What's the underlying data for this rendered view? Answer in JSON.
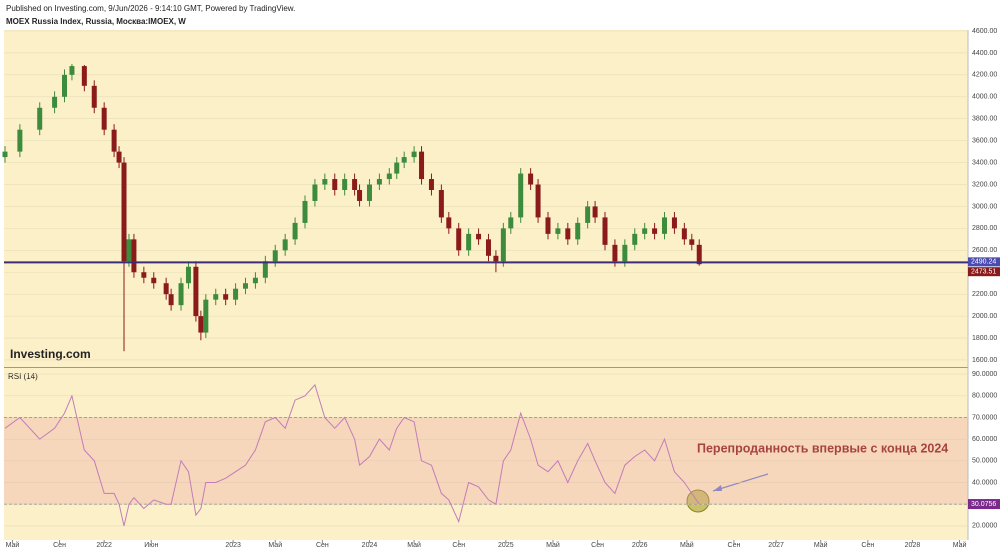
{
  "header": {
    "published": "Published on Investing.com, 9/Jun/2026 - 9:14:10 GMT, Powered by TradingView.",
    "symbol": "MOEX Russia Index, Russia, Москва:IMOEX, W"
  },
  "chart_data": [
    {
      "type": "candlestick",
      "watermark": "Investing.com",
      "x": [
        0,
        6,
        14,
        20,
        24,
        27,
        32,
        36,
        40,
        44,
        46,
        48,
        50,
        52,
        56,
        60,
        65,
        67,
        71,
        74,
        77,
        79,
        81,
        85,
        89,
        93,
        97,
        101,
        105,
        109,
        113,
        117,
        121,
        125,
        129,
        133,
        137,
        141,
        143,
        147,
        151,
        155,
        158,
        161,
        165,
        168,
        172,
        176,
        179,
        183,
        187,
        191,
        195,
        198,
        201,
        204,
        208,
        212,
        215,
        219,
        223,
        227,
        231,
        235,
        238,
        242,
        246,
        250,
        254,
        258,
        262,
        266,
        270,
        274,
        277,
        280
      ],
      "open": [
        3450,
        3500,
        3700,
        3900,
        4000,
        4200,
        4280,
        4100,
        3900,
        3700,
        3500,
        3400,
        2500,
        2700,
        2400,
        2350,
        2300,
        2200,
        2100,
        2300,
        2450,
        2000,
        1850,
        2150,
        2200,
        2150,
        2250,
        2300,
        2350,
        2500,
        2600,
        2700,
        2850,
        3050,
        3200,
        3250,
        3150,
        3250,
        3150,
        3050,
        3200,
        3250,
        3300,
        3400,
        3450,
        3500,
        3250,
        3150,
        2900,
        2800,
        2600,
        2750,
        2700,
        2550,
        2500,
        2800,
        2900,
        3300,
        3200,
        2900,
        2750,
        2800,
        2700,
        2850,
        3000,
        2900,
        2650,
        2500,
        2650,
        2750,
        2800,
        2750,
        2900,
        2800,
        2700,
        2650
      ],
      "high": [
        3550,
        3750,
        3950,
        4050,
        4250,
        4300,
        4290,
        4150,
        3950,
        3750,
        3550,
        3450,
        2750,
        2750,
        2450,
        2400,
        2350,
        2250,
        2350,
        2500,
        2500,
        2050,
        2200,
        2250,
        2250,
        2300,
        2350,
        2400,
        2550,
        2650,
        2750,
        2900,
        3100,
        3250,
        3300,
        3300,
        3300,
        3300,
        3200,
        3250,
        3300,
        3350,
        3450,
        3500,
        3550,
        3550,
        3300,
        3200,
        2950,
        2850,
        2800,
        2800,
        2750,
        2600,
        2850,
        2950,
        3350,
        3350,
        3250,
        2950,
        2850,
        2850,
        2900,
        3050,
        3050,
        2950,
        2700,
        2700,
        2800,
        2850,
        2850,
        2950,
        2950,
        2850,
        2750,
        2700
      ],
      "low": [
        3400,
        3450,
        3650,
        3850,
        3950,
        4150,
        4050,
        3850,
        3650,
        3450,
        3350,
        1680,
        2450,
        2350,
        2300,
        2250,
        2150,
        2050,
        2050,
        2250,
        1950,
        1780,
        1800,
        2100,
        2100,
        2100,
        2200,
        2250,
        2300,
        2450,
        2550,
        2650,
        2800,
        3000,
        3150,
        3100,
        3100,
        3100,
        3000,
        3000,
        3150,
        3200,
        3250,
        3350,
        3400,
        3200,
        3100,
        2850,
        2750,
        2550,
        2550,
        2650,
        2500,
        2400,
        2450,
        2750,
        2850,
        3150,
        2850,
        2700,
        2700,
        2650,
        2650,
        2800,
        2850,
        2600,
        2450,
        2450,
        2600,
        2700,
        2700,
        2700,
        2750,
        2650,
        2600,
        2460
      ],
      "close": [
        3500,
        3700,
        3900,
        4000,
        4200,
        4280,
        4100,
        3900,
        3700,
        3500,
        3400,
        2500,
        2700,
        2400,
        2350,
        2300,
        2200,
        2100,
        2300,
        2450,
        2000,
        1850,
        2150,
        2200,
        2150,
        2250,
        2300,
        2350,
        2500,
        2600,
        2700,
        2850,
        3050,
        3200,
        3250,
        3150,
        3250,
        3150,
        3050,
        3200,
        3250,
        3300,
        3400,
        3450,
        3500,
        3250,
        3150,
        2900,
        2800,
        2600,
        2750,
        2700,
        2550,
        2500,
        2800,
        2900,
        3300,
        3200,
        2900,
        2750,
        2800,
        2700,
        2850,
        3000,
        2900,
        2650,
        2500,
        2650,
        2750,
        2800,
        2750,
        2900,
        2800,
        2700,
        2650,
        2473.51
      ],
      "up_color": "#3d8b3d",
      "down_color": "#8b1a1a",
      "hline": {
        "value": 2490.24,
        "color": "#3b2d7a"
      },
      "xlim": [
        0,
        388
      ],
      "ylim": [
        1536,
        4609
      ],
      "yticks": [
        {
          "value": 1600,
          "label": "1600.00"
        },
        {
          "value": 1800,
          "label": "1800.00"
        },
        {
          "value": 2000,
          "label": "2000.00"
        },
        {
          "value": 2200,
          "label": "2200.00"
        },
        {
          "value": 2400,
          "label": "2400.00"
        },
        {
          "value": 2600,
          "label": "2600.00"
        },
        {
          "value": 2800,
          "label": "2800.00"
        },
        {
          "value": 3000,
          "label": "3000.00"
        },
        {
          "value": 3200,
          "label": "3200.00"
        },
        {
          "value": 3400,
          "label": "3400.00"
        },
        {
          "value": 3600,
          "label": "3600.00"
        },
        {
          "value": 3800,
          "label": "3800.00"
        },
        {
          "value": 4000,
          "label": "4000.00"
        },
        {
          "value": 4200,
          "label": "4200.00"
        },
        {
          "value": 4400,
          "label": "4400.00"
        },
        {
          "value": 4600,
          "label": "4600.00"
        }
      ],
      "grid": true
    },
    {
      "type": "line",
      "title": "RSI (14)",
      "x": [
        0,
        6,
        14,
        20,
        24,
        27,
        32,
        36,
        40,
        44,
        46,
        48,
        50,
        52,
        56,
        60,
        65,
        67,
        71,
        74,
        77,
        79,
        81,
        85,
        89,
        93,
        97,
        101,
        105,
        109,
        113,
        117,
        121,
        125,
        129,
        133,
        137,
        141,
        143,
        147,
        151,
        155,
        158,
        161,
        165,
        168,
        172,
        176,
        179,
        183,
        187,
        191,
        195,
        198,
        201,
        204,
        208,
        212,
        215,
        219,
        223,
        227,
        231,
        235,
        238,
        242,
        246,
        250,
        254,
        258,
        262,
        266,
        270,
        274,
        277,
        280
      ],
      "values": [
        65,
        70,
        60,
        65,
        72,
        80,
        55,
        50,
        35,
        35,
        30,
        20,
        30,
        33,
        28,
        32,
        30,
        30,
        50,
        45,
        25,
        28,
        40,
        40,
        42,
        45,
        48,
        55,
        68,
        70,
        65,
        78,
        80,
        85,
        70,
        65,
        70,
        60,
        48,
        52,
        60,
        55,
        65,
        70,
        68,
        50,
        48,
        35,
        32,
        22,
        40,
        38,
        32,
        30,
        50,
        55,
        72,
        60,
        48,
        45,
        50,
        40,
        50,
        58,
        50,
        40,
        35,
        48,
        52,
        55,
        50,
        60,
        45,
        40,
        35,
        30.0756
      ],
      "color": "#c27cb8",
      "band": [
        30,
        70
      ],
      "annotation": "Перепроданность впервые с конца 2024",
      "xlim": [
        0,
        388
      ],
      "ylim": [
        13.5,
        92.8
      ],
      "yticks": [
        {
          "value": 20,
          "label": "20.0000"
        },
        {
          "value": 30,
          "label": "30.0000"
        },
        {
          "value": 40,
          "label": "40.0000"
        },
        {
          "value": 50,
          "label": "50.0000"
        },
        {
          "value": 60,
          "label": "60.0000"
        },
        {
          "value": 70,
          "label": "70.0000"
        },
        {
          "value": 80,
          "label": "80.0000"
        },
        {
          "value": 90,
          "label": "90.0000"
        }
      ],
      "xticks": [
        {
          "value": 3,
          "label": "Май"
        },
        {
          "value": 22,
          "label": "Сен"
        },
        {
          "value": 40,
          "label": "2022"
        },
        {
          "value": 59,
          "label": "Июн"
        },
        {
          "value": 92,
          "label": "2023"
        },
        {
          "value": 109,
          "label": "Май"
        },
        {
          "value": 128,
          "label": "Сен"
        },
        {
          "value": 147,
          "label": "2024"
        },
        {
          "value": 165,
          "label": "Май"
        },
        {
          "value": 183,
          "label": "Сен"
        },
        {
          "value": 202,
          "label": "2025"
        },
        {
          "value": 221,
          "label": "Май"
        },
        {
          "value": 239,
          "label": "Сен"
        },
        {
          "value": 256,
          "label": "2026"
        },
        {
          "value": 275,
          "label": "Май"
        },
        {
          "value": 294,
          "label": "Сен"
        },
        {
          "value": 311,
          "label": "2027"
        },
        {
          "value": 329,
          "label": "Май"
        },
        {
          "value": 348,
          "label": "Сен"
        },
        {
          "value": 366,
          "label": "2028"
        },
        {
          "value": 385,
          "label": "Май"
        }
      ],
      "grid": true
    }
  ]
}
